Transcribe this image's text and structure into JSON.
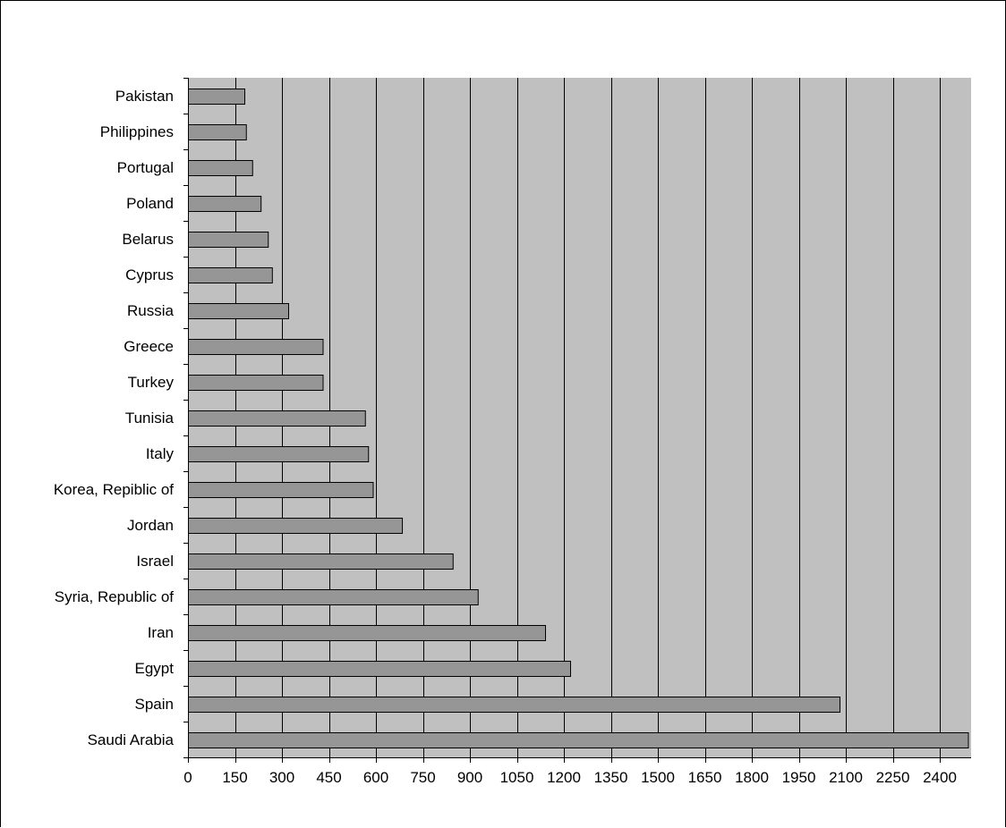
{
  "chart_data": {
    "type": "bar",
    "orientation": "horizontal",
    "title": "",
    "xlabel": "",
    "ylabel": "",
    "categories": [
      "Pakistan",
      "Philippines",
      "Portugal",
      "Poland",
      "Belarus",
      "Cyprus",
      "Russia",
      "Greece",
      "Turkey",
      "Tunisia",
      "Italy",
      "Korea, Repiblic of",
      "Jordan",
      "Israel",
      "Syria, Republic of",
      "Iran",
      "Egypt",
      "Spain",
      "Saudi Arabia"
    ],
    "values": [
      180,
      185,
      205,
      232,
      255,
      268,
      320,
      430,
      430,
      565,
      575,
      590,
      683,
      845,
      925,
      1140,
      1220,
      2080,
      2490
    ],
    "xlim": [
      0,
      2500
    ],
    "xticks": [
      0,
      150,
      300,
      450,
      600,
      750,
      900,
      1050,
      1200,
      1350,
      1500,
      1650,
      1800,
      1950,
      2100,
      2250,
      2400
    ],
    "xtick_labels": [
      "0",
      "150",
      "300",
      "450",
      "600",
      "750",
      "900",
      "1050",
      "1200",
      "1350",
      "1500",
      "1650",
      "1800",
      "1950",
      "2100",
      "2250",
      "2400"
    ],
    "grid": "vertical",
    "legend": "none",
    "colors": {
      "plot_background": "#c0c0c0",
      "bar_fill": "#969696",
      "bar_stroke": "#000000",
      "gridline": "#000000",
      "frame": "#000000"
    }
  }
}
